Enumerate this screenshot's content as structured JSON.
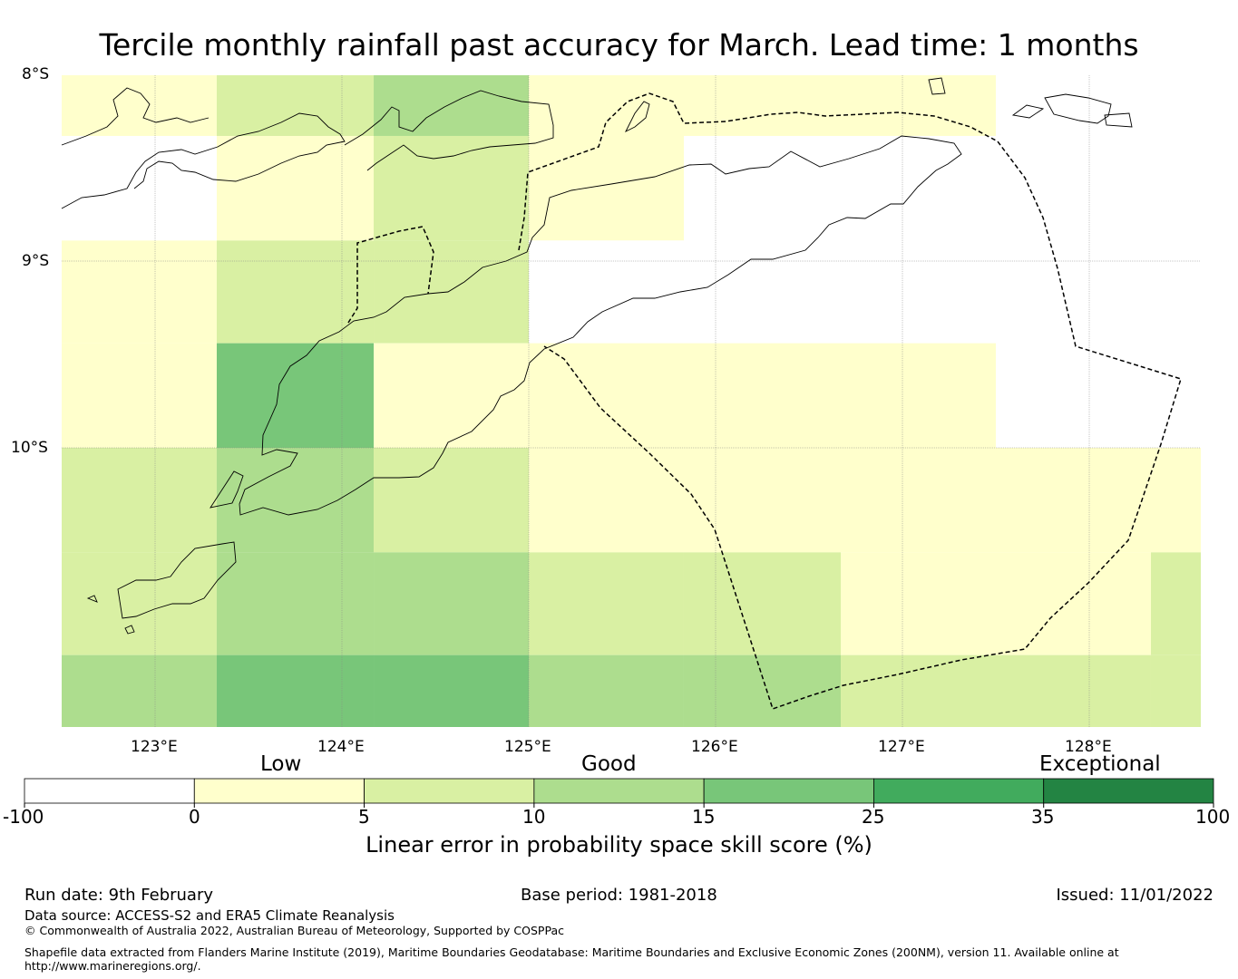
{
  "title": "Tercile monthly rainfall past accuracy for March. Lead time: 1 months",
  "map": {
    "lat_labels": [
      "8°S",
      "9°S",
      "10°S"
    ],
    "lon_labels": [
      "123°E",
      "124°E",
      "125°E",
      "126°E",
      "127°E",
      "128°E"
    ],
    "extent": {
      "lon_min": 122.5,
      "lon_max": 128.6,
      "lat_min": -11.5,
      "lat_max": -8.0
    },
    "colors": {
      "neg": "#ffffff",
      "c0_5": "#ffffcc",
      "c5_10": "#d9f0a3",
      "c10_15": "#addd8e",
      "c15_25": "#78c679",
      "c25_35": "#41ab5d",
      "c35_100": "#238443"
    },
    "skill_grid": {
      "lon_edges": [
        122.5,
        123.33,
        124.17,
        125.0,
        125.83,
        126.67,
        127.5,
        128.33,
        128.6
      ],
      "lat_edges": [
        -8.0,
        -8.33,
        -8.89,
        -9.44,
        -10.0,
        -10.56,
        -11.11,
        -11.5
      ],
      "rows": [
        [
          "c0_5",
          "c5_10",
          "c10_15",
          "c0_5",
          "c0_5",
          "c0_5",
          "neg",
          "neg"
        ],
        [
          "neg",
          "c0_5",
          "c5_10",
          "c0_5",
          "neg",
          "neg",
          "neg",
          "neg"
        ],
        [
          "c0_5",
          "c5_10",
          "c5_10",
          "neg",
          "neg",
          "neg",
          "neg",
          "neg"
        ],
        [
          "c0_5",
          "c15_25",
          "c0_5",
          "c0_5",
          "c0_5",
          "c0_5",
          "neg",
          "neg"
        ],
        [
          "c5_10",
          "c10_15",
          "c5_10",
          "c0_5",
          "c0_5",
          "c0_5",
          "c0_5",
          "c0_5"
        ],
        [
          "c5_10",
          "c10_15",
          "c10_15",
          "c5_10",
          "c5_10",
          "c0_5",
          "c0_5",
          "c5_10"
        ],
        [
          "c10_15",
          "c15_25",
          "c15_25",
          "c10_15",
          "c10_15",
          "c5_10",
          "c5_10",
          "c5_10"
        ]
      ]
    }
  },
  "colorbar": {
    "categories": [
      "Low",
      "Good",
      "Exceptional"
    ],
    "ticks": [
      "-100",
      "0",
      "5",
      "10",
      "15",
      "25",
      "35",
      "100"
    ],
    "label": "Linear error in probability space skill score (%)"
  },
  "footer": {
    "run_date": "Run date: 9th February",
    "base_period": "Base period: 1981-2018",
    "issued": "Issued: 11/01/2022",
    "data_source": "Data source: ACCESS-S2 and ERA5 Climate Reanalysis",
    "copyright": "© Commonwealth of Australia 2022, Australian Bureau of Meteorology, Supported by COSPPac",
    "shapefile_line1": "Shapefile data extracted from Flanders Marine Institute (2019), Maritime Boundaries Geodatabase: Maritime Boundaries and Exclusive Economic Zones (200NM), version 11. Available online at",
    "shapefile_line2": "http://www.marineregions.org/."
  }
}
